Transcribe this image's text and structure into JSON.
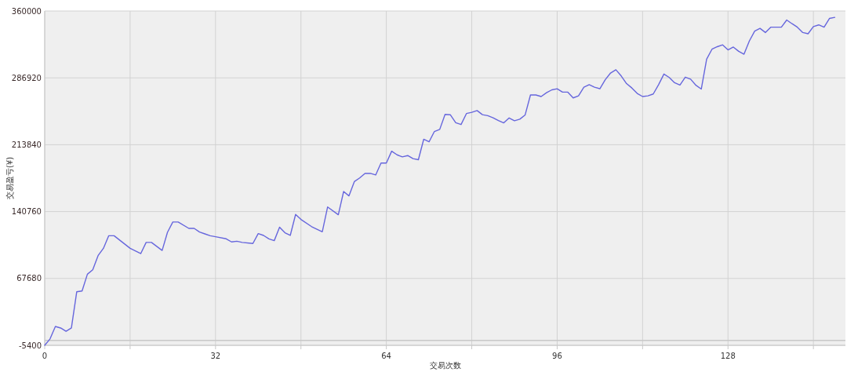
{
  "chart_data": {
    "type": "line",
    "xlabel": "交易次数",
    "ylabel": "交易盈亏(¥)",
    "x": [
      0,
      1,
      2,
      3,
      4,
      5,
      6,
      7,
      8,
      9,
      10,
      11,
      12,
      13,
      16,
      18,
      19,
      20,
      22,
      23,
      24,
      25,
      27,
      28,
      29,
      30,
      31,
      32,
      34,
      35,
      36,
      37,
      39,
      40,
      41,
      42,
      43,
      44,
      45,
      46,
      47,
      48,
      50,
      52,
      53,
      55,
      56,
      57,
      58,
      59,
      60,
      61,
      62,
      63,
      64,
      65,
      66,
      67,
      68,
      69,
      70,
      71,
      72,
      73,
      74,
      75,
      76,
      77,
      78,
      79,
      80,
      81,
      82,
      83,
      84,
      85,
      86,
      87,
      88,
      89,
      90,
      91,
      92,
      93,
      94,
      95,
      96,
      97,
      98,
      99,
      100,
      101,
      102,
      103,
      104,
      105,
      106,
      107,
      108,
      109,
      110,
      111,
      112,
      113,
      114,
      115,
      116,
      117,
      118,
      119,
      120,
      121,
      122,
      123,
      124,
      125,
      126,
      127,
      128,
      129,
      130,
      131,
      132,
      133,
      134,
      135,
      136,
      137,
      138,
      139,
      140,
      141,
      142,
      143,
      144,
      145,
      146,
      147,
      148
    ],
    "series": [
      {
        "color": "#6666dd",
        "values": [
          -5400,
          1600,
          15200,
          13500,
          9900,
          13500,
          53100,
          54000,
          72300,
          77100,
          92700,
          100600,
          114400,
          114400,
          100600,
          94900,
          107100,
          107100,
          98300,
          118100,
          129400,
          129400,
          122400,
          122400,
          118400,
          116400,
          114400,
          113300,
          111000,
          107600,
          108400,
          107100,
          105900,
          116700,
          114700,
          111000,
          109000,
          123700,
          117600,
          114700,
          137600,
          132200,
          124300,
          118700,
          145800,
          137300,
          162700,
          157900,
          173500,
          177500,
          182500,
          182500,
          180800,
          193800,
          193800,
          206800,
          202800,
          200600,
          202000,
          198600,
          197500,
          219800,
          217000,
          228300,
          230600,
          247000,
          246500,
          237900,
          235900,
          247900,
          249300,
          251200,
          246700,
          245600,
          243300,
          240200,
          237700,
          243100,
          240000,
          241700,
          246400,
          268200,
          268200,
          266500,
          270700,
          273800,
          275000,
          271300,
          271300,
          265000,
          267300,
          276700,
          279500,
          276700,
          275000,
          284800,
          292200,
          295800,
          289000,
          280600,
          275800,
          269900,
          266500,
          267300,
          269300,
          279500,
          291100,
          287300,
          281600,
          279100,
          287700,
          285500,
          278800,
          274700,
          307400,
          318200,
          321000,
          323000,
          317500,
          320600,
          315900,
          312800,
          327200,
          338000,
          341000,
          336500,
          342300,
          342300,
          342300,
          350100,
          346100,
          342300,
          336500,
          335100,
          343000,
          344800,
          342300,
          351800,
          353000
        ]
      }
    ],
    "xlim": [
      0,
      150
    ],
    "ylim": [
      -5400,
      360000
    ],
    "xticks": [
      0,
      {
        "value": 16,
        "label": null
      },
      32,
      {
        "value": 48,
        "label": null
      },
      64,
      {
        "value": 80,
        "label": null
      },
      96,
      {
        "value": 112,
        "label": null
      },
      128,
      {
        "value": 144,
        "label": null
      }
    ],
    "yticks": [
      -5400,
      67680,
      140760,
      213840,
      286920,
      360000
    ],
    "grid": true,
    "ref_lines": [
      {
        "axis": "y",
        "value": 0,
        "color": "#c8c8c8"
      }
    ]
  }
}
